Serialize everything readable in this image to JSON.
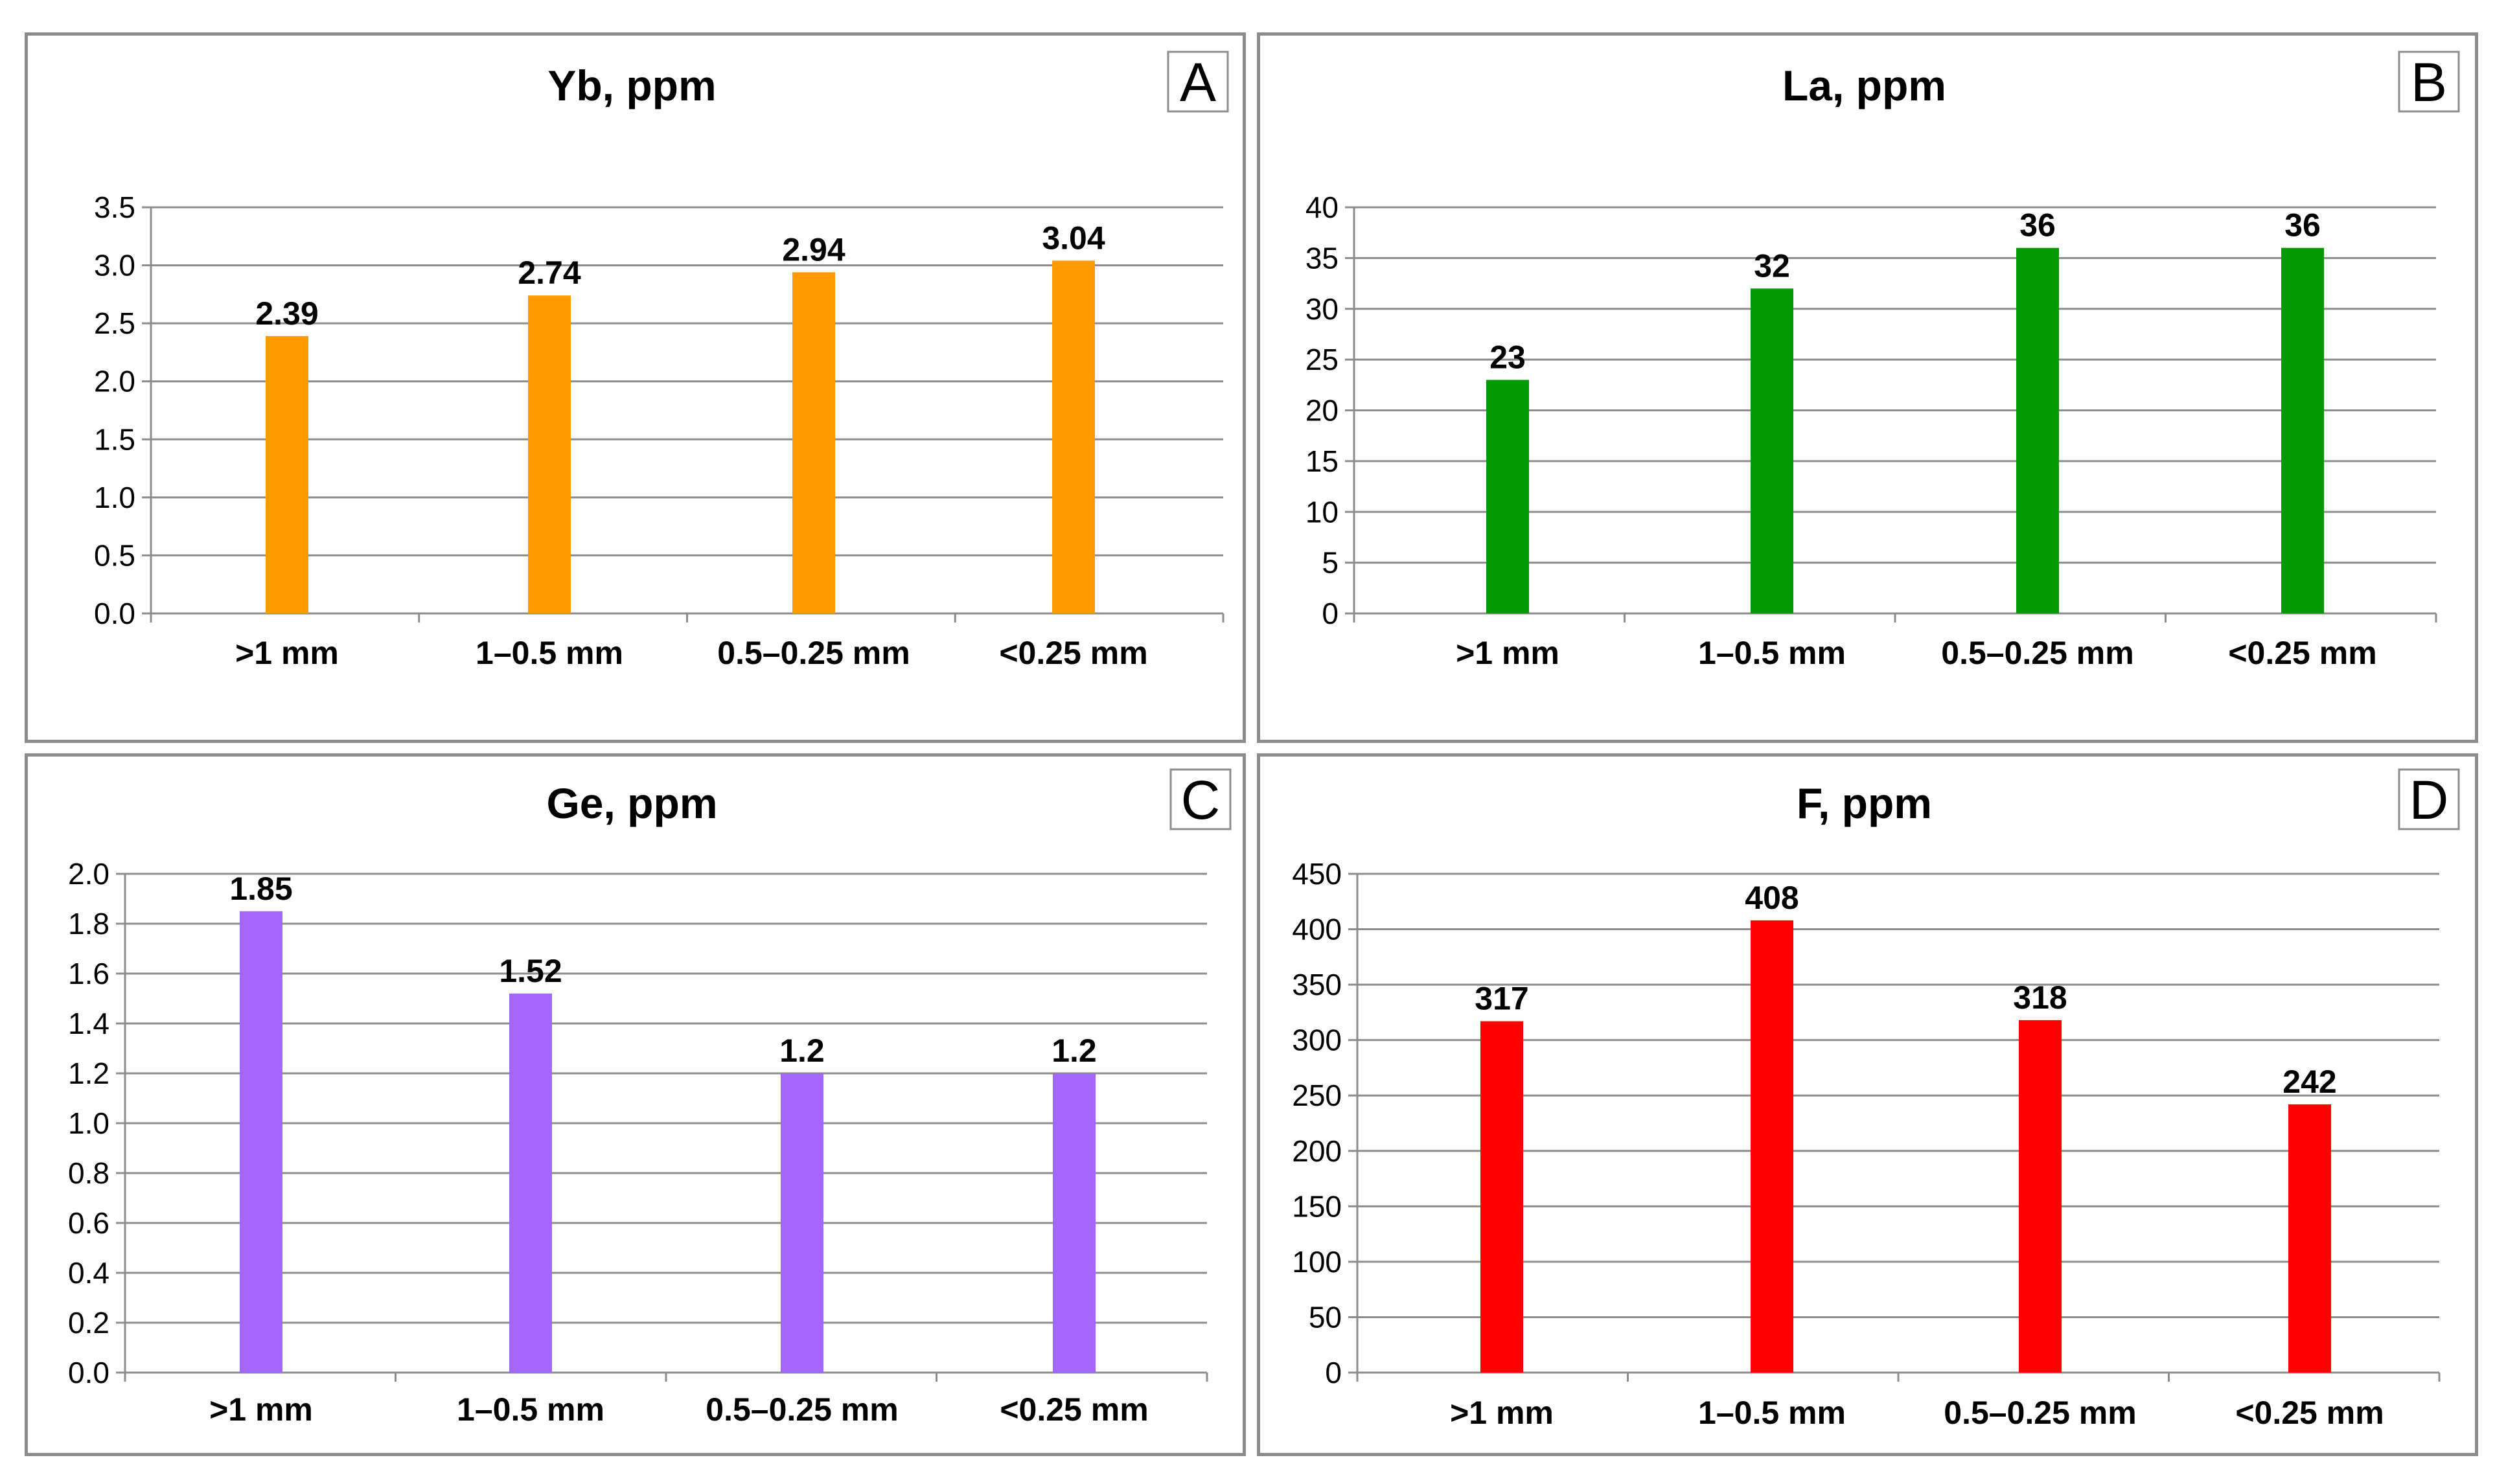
{
  "chart_data": [
    {
      "panel_letter": "A",
      "type": "bar",
      "title": "Yb, ppm",
      "categories": [
        ">1 mm",
        "1–0.5 mm",
        "0.5–0.25 mm",
        "<0.25 mm"
      ],
      "values": [
        2.39,
        2.74,
        2.94,
        3.04
      ],
      "value_labels": [
        "2.39",
        "2.74",
        "2.94",
        "3.04"
      ],
      "ylim": [
        0,
        3.5
      ],
      "y_ticks": [
        "0.0",
        "0.5",
        "1.0",
        "1.5",
        "2.0",
        "2.5",
        "3.0",
        "3.5"
      ],
      "bar_color": "#FF9900",
      "grid": true,
      "xlabel": "",
      "ylabel": ""
    },
    {
      "panel_letter": "B",
      "type": "bar",
      "title": "La, ppm",
      "categories": [
        ">1 mm",
        "1–0.5 mm",
        "0.5–0.25 mm",
        "<0.25 mm"
      ],
      "values": [
        23,
        32,
        36,
        36
      ],
      "value_labels": [
        "23",
        "32",
        "36",
        "36"
      ],
      "ylim": [
        0,
        40
      ],
      "y_ticks": [
        "0",
        "5",
        "10",
        "15",
        "20",
        "25",
        "30",
        "35",
        "40"
      ],
      "bar_color": "#009900",
      "grid": true,
      "xlabel": "",
      "ylabel": ""
    },
    {
      "panel_letter": "C",
      "type": "bar",
      "title": "Ge, ppm",
      "categories": [
        ">1 mm",
        "1–0.5 mm",
        "0.5–0.25 mm",
        "<0.25 mm"
      ],
      "values": [
        1.85,
        1.52,
        1.2,
        1.2
      ],
      "value_labels": [
        "1.85",
        "1.52",
        "1.2",
        "1.2"
      ],
      "ylim": [
        0,
        2.0
      ],
      "y_ticks": [
        "0.0",
        "0.2",
        "0.4",
        "0.6",
        "0.8",
        "1.0",
        "1.2",
        "1.4",
        "1.6",
        "1.8",
        "2.0"
      ],
      "bar_color": "#A366FF",
      "grid": true,
      "xlabel": "",
      "ylabel": ""
    },
    {
      "panel_letter": "D",
      "type": "bar",
      "title": "F, ppm",
      "categories": [
        ">1 mm",
        "1–0.5 mm",
        "0.5–0.25 mm",
        "<0.25 mm"
      ],
      "values": [
        317,
        408,
        318,
        242
      ],
      "value_labels": [
        "317",
        "408",
        "318",
        "242"
      ],
      "ylim": [
        0,
        450
      ],
      "y_ticks": [
        "0",
        "50",
        "100",
        "150",
        "200",
        "250",
        "300",
        "350",
        "400",
        "450"
      ],
      "bar_color": "#FF0000",
      "grid": true,
      "xlabel": "",
      "ylabel": ""
    }
  ]
}
